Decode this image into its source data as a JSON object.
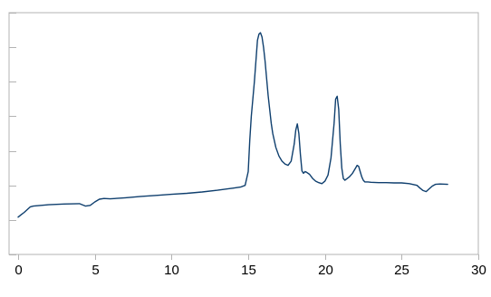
{
  "chart_data": {
    "type": "line",
    "title": "",
    "xlabel": "",
    "ylabel": "",
    "xlim": [
      0,
      30
    ],
    "ylim": [
      0,
      7
    ],
    "x_ticks": [
      0,
      5,
      10,
      15,
      20,
      25,
      30
    ],
    "x_tick_labels": [
      "0",
      "5",
      "10",
      "15",
      "20",
      "25",
      "30"
    ],
    "y_ticks": [
      0,
      1,
      2,
      3,
      4,
      5,
      6,
      7
    ],
    "y_tick_labels": [
      "",
      "",
      "",
      "",
      "",
      "",
      "",
      ""
    ],
    "grid": false,
    "legend": "none",
    "series": [
      {
        "color": "#0f3f6e",
        "x": [
          0.0,
          0.2,
          0.4,
          0.6,
          0.8,
          1.0,
          1.5,
          2.0,
          3.0,
          4.0,
          4.4,
          4.7,
          5.0,
          5.3,
          5.6,
          6.0,
          7.0,
          8.0,
          9.0,
          10.0,
          11.0,
          12.0,
          13.0,
          14.0,
          14.5,
          14.8,
          15.0,
          15.1,
          15.2,
          15.3,
          15.4,
          15.5,
          15.6,
          15.7,
          15.8,
          15.9,
          16.0,
          16.1,
          16.2,
          16.3,
          16.4,
          16.5,
          16.6,
          16.8,
          17.0,
          17.2,
          17.4,
          17.6,
          17.8,
          18.0,
          18.1,
          18.2,
          18.3,
          18.4,
          18.5,
          18.6,
          18.7,
          18.8,
          19.0,
          19.2,
          19.4,
          19.6,
          19.8,
          20.0,
          20.2,
          20.4,
          20.6,
          20.7,
          20.8,
          20.9,
          21.0,
          21.1,
          21.2,
          21.3,
          21.4,
          21.6,
          21.8,
          22.0,
          22.1,
          22.2,
          22.3,
          22.4,
          22.5,
          22.6,
          22.8,
          23.0,
          23.5,
          24.0,
          24.5,
          25.0,
          25.5,
          26.0,
          26.2,
          26.4,
          26.6,
          26.8,
          27.0,
          27.2,
          27.5,
          28.0
        ],
        "y": [
          1.08,
          1.15,
          1.22,
          1.3,
          1.38,
          1.4,
          1.42,
          1.44,
          1.46,
          1.47,
          1.4,
          1.42,
          1.52,
          1.6,
          1.62,
          1.61,
          1.64,
          1.68,
          1.71,
          1.74,
          1.77,
          1.81,
          1.86,
          1.92,
          1.95,
          2.0,
          2.4,
          3.3,
          4.0,
          4.5,
          5.0,
          5.6,
          6.2,
          6.38,
          6.42,
          6.3,
          6.0,
          5.6,
          5.1,
          4.6,
          4.2,
          3.8,
          3.5,
          3.1,
          2.85,
          2.7,
          2.62,
          2.58,
          2.7,
          3.2,
          3.6,
          3.78,
          3.5,
          2.9,
          2.42,
          2.35,
          2.4,
          2.38,
          2.32,
          2.2,
          2.12,
          2.08,
          2.05,
          2.12,
          2.3,
          2.8,
          3.8,
          4.5,
          4.58,
          4.2,
          3.2,
          2.5,
          2.2,
          2.15,
          2.18,
          2.25,
          2.35,
          2.5,
          2.58,
          2.55,
          2.4,
          2.25,
          2.15,
          2.1,
          2.1,
          2.09,
          2.08,
          2.08,
          2.07,
          2.07,
          2.05,
          2.0,
          1.92,
          1.85,
          1.82,
          1.9,
          1.98,
          2.03,
          2.04,
          2.03
        ]
      }
    ]
  }
}
